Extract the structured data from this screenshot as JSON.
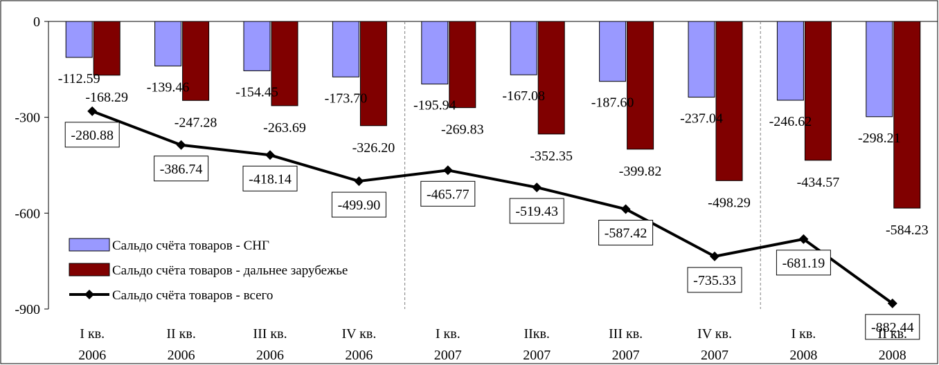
{
  "chart_data": {
    "type": "bar",
    "categories": [
      [
        "I кв.",
        "2006"
      ],
      [
        "II кв.",
        "2006"
      ],
      [
        "III кв.",
        "2006"
      ],
      [
        "IV кв.",
        "2006"
      ],
      [
        "I кв.",
        "2007"
      ],
      [
        "IIкв.",
        "2007"
      ],
      [
        "III кв.",
        "2007"
      ],
      [
        "IV кв.",
        "2007"
      ],
      [
        "I кв.",
        "2008"
      ],
      [
        "II кв.",
        "2008"
      ]
    ],
    "series": [
      {
        "name": "Сальдо счёта товаров - СНГ",
        "kind": "bar",
        "color": "#9999ff",
        "values": [
          -112.59,
          -139.46,
          -154.45,
          -173.7,
          -195.94,
          -167.08,
          -187.6,
          -237.04,
          -246.62,
          -298.21
        ],
        "labels": [
          "-112.59",
          "-139.46",
          "-154.45",
          "-173.70",
          "-195.94",
          "-167.08",
          "-187.60",
          "-237.04",
          "-246.62",
          "-298.21"
        ]
      },
      {
        "name": "Сальдо счёта товаров - дальнее зарубежье",
        "kind": "bar",
        "color": "#800000",
        "values": [
          -168.29,
          -247.28,
          -263.69,
          -326.2,
          -269.83,
          -352.35,
          -399.82,
          -498.29,
          -434.57,
          -584.23
        ],
        "labels": [
          "-168.29",
          "-247.28",
          "-263.69",
          "-326.20",
          "-269.83",
          "-352.35",
          "-399.82",
          "-498.29",
          "-434.57",
          "-584.23"
        ]
      },
      {
        "name": "Сальдо счёта товаров - всего",
        "kind": "line",
        "color": "#000000",
        "values": [
          -280.88,
          -386.74,
          -418.14,
          -499.9,
          -465.77,
          -519.43,
          -587.42,
          -735.33,
          -681.19,
          -882.44
        ],
        "labels": [
          "-280.88",
          "-386.74",
          "-418.14",
          "-499.90",
          "-465.77",
          "-519.43",
          "-587.42",
          "-735.33",
          "-681.19",
          "-882.44"
        ]
      }
    ],
    "yticks": [
      0,
      -300,
      -600,
      -900
    ],
    "ytick_labels": [
      "0",
      "-300",
      "-600",
      "-900"
    ],
    "ylim": [
      -900,
      0
    ],
    "grid": false,
    "year_separators_after": [
      3,
      7
    ],
    "legend_position": "lower-left",
    "title": "",
    "xlabel": "",
    "ylabel": ""
  }
}
